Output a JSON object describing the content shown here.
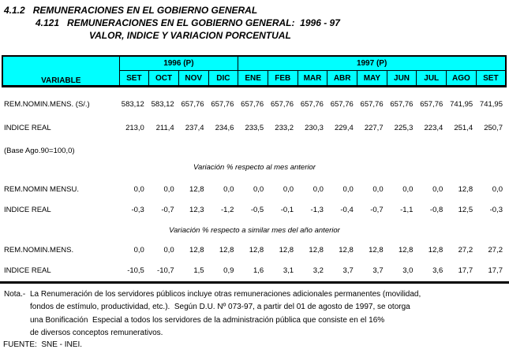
{
  "titles": {
    "line1": "4.1.2   REMUNERACIONES EN EL GOBIERNO GENERAL",
    "line2": "4.121   REMUNERACIONES EN EL GOBIERNO GENERAL:  1996 - 97",
    "line3": "VALOR, INDICE Y VARIACION PORCENTUAL"
  },
  "colors": {
    "header_bg": "#00ffff",
    "border": "#000000",
    "text": "#000000",
    "page_bg": "#ffffff"
  },
  "table": {
    "variable_header": "VARIABLE",
    "year_1996": "1996 (P)",
    "year_1997": "1997 (P)",
    "months": [
      "SET",
      "OCT",
      "NOV",
      "DIC",
      "ENE",
      "FEB",
      "MAR",
      "ABR",
      "MAY",
      "JUN",
      "JUL",
      "AGO",
      "SET"
    ],
    "value_rows": [
      {
        "label": "REM.NOMIN.MENS. (S/.)",
        "values": [
          "583,12",
          "583,12",
          "657,76",
          "657,76",
          "657,76",
          "657,76",
          "657,76",
          "657,76",
          "657,76",
          "657,76",
          "657,76",
          "741,95",
          "741,95"
        ]
      },
      {
        "label": "INDICE REAL",
        "values": [
          "213,0",
          "211,4",
          "237,4",
          "234,6",
          "233,5",
          "233,2",
          "230,3",
          "229,4",
          "227,7",
          "225,3",
          "223,4",
          "251,4",
          "250,7"
        ]
      }
    ],
    "base_note": "(Base Ago.90=100,0)",
    "section_month": {
      "title": "Variación % respecto al mes anterior",
      "rows": [
        {
          "label": "REM.NOMIN MENSU.",
          "values": [
            "0,0",
            "0,0",
            "12,8",
            "0,0",
            "0,0",
            "0,0",
            "0,0",
            "0,0",
            "0,0",
            "0,0",
            "0,0",
            "12,8",
            "0,0"
          ]
        },
        {
          "label": "INDICE REAL",
          "values": [
            "-0,3",
            "-0,7",
            "12,3",
            "-1,2",
            "-0,5",
            "-0,1",
            "-1,3",
            "-0,4",
            "-0,7",
            "-1,1",
            "-0,8",
            "12,5",
            "-0,3"
          ]
        }
      ]
    },
    "section_year": {
      "title": "Variación % respecto a similar mes del año anterior",
      "rows": [
        {
          "label": "REM.NOMIN.MENS.",
          "values": [
            "0,0",
            "0,0",
            "12,8",
            "12,8",
            "12,8",
            "12,8",
            "12,8",
            "12,8",
            "12,8",
            "12,8",
            "12,8",
            "27,2",
            "27,2"
          ]
        },
        {
          "label": "INDICE REAL",
          "values": [
            "-10,5",
            "-10,7",
            "1,5",
            "0,9",
            "1,6",
            "3,1",
            "3,2",
            "3,7",
            "3,7",
            "3,0",
            "3,6",
            "17,7",
            "17,7"
          ]
        }
      ]
    }
  },
  "footer": {
    "nota_label": "Nota.-",
    "nota_lines": [
      "La Renumeración de los servidores públicos incluye otras remuneraciones adicionales permanentes (movilidad,",
      "fondos de estímulo, productividad, etc.).  Según D.U. Nº 073-97, a partir del 01 de agosto de 1997, se otorga",
      "una Bonificación  Especial a todos los servidores de la administración pública que consiste en el 16%",
      "de diversos conceptos remunerativos."
    ],
    "fuente": "FUENTE:  SNE - INEI."
  }
}
